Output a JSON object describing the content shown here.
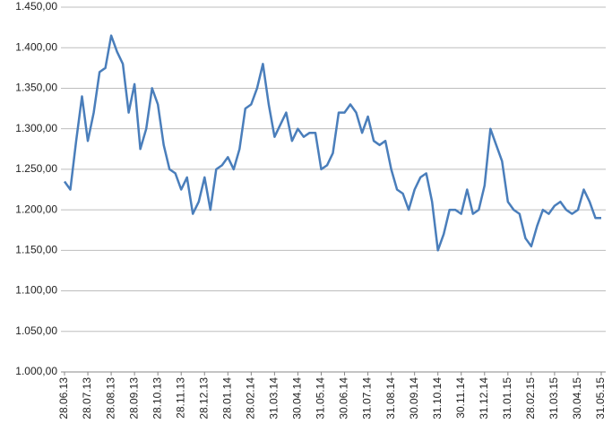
{
  "chart_data": {
    "type": "line",
    "categories": [
      "28.06.13",
      null,
      null,
      null,
      "28.07.13",
      null,
      null,
      null,
      "28.08.13",
      null,
      null,
      null,
      "28.09.13",
      null,
      null,
      null,
      "28.10.13",
      null,
      null,
      null,
      "28.11.13",
      null,
      null,
      null,
      "28.12.13",
      null,
      null,
      null,
      "28.01.14",
      null,
      null,
      null,
      "28.02.14",
      null,
      null,
      null,
      "31.03.14",
      null,
      null,
      null,
      "30.04.14",
      null,
      null,
      null,
      "31.05.14",
      null,
      null,
      null,
      "30.06.14",
      null,
      null,
      null,
      "31.07.14",
      null,
      null,
      null,
      "31.08.14",
      null,
      null,
      null,
      "30.09.14",
      null,
      null,
      null,
      "31.10.14",
      null,
      null,
      null,
      "30.11.14",
      null,
      null,
      null,
      "31.12.14",
      null,
      null,
      null,
      "31.01.15",
      null,
      null,
      null,
      "28.02.15",
      null,
      null,
      null,
      "31.03.15",
      null,
      null,
      null,
      "30.04.15",
      null,
      null,
      null,
      "31.05.15"
    ],
    "values": [
      1235,
      1225,
      1285,
      1340,
      1285,
      1320,
      1370,
      1375,
      1415,
      1395,
      1380,
      1320,
      1355,
      1275,
      1300,
      1350,
      1330,
      1280,
      1250,
      1245,
      1225,
      1240,
      1195,
      1210,
      1240,
      1200,
      1250,
      1255,
      1265,
      1250,
      1275,
      1325,
      1330,
      1350,
      1380,
      1330,
      1290,
      1305,
      1320,
      1285,
      1300,
      1290,
      1295,
      1295,
      1250,
      1255,
      1270,
      1320,
      1320,
      1330,
      1320,
      1295,
      1315,
      1285,
      1280,
      1285,
      1250,
      1225,
      1220,
      1200,
      1225,
      1240,
      1245,
      1210,
      1150,
      1170,
      1200,
      1200,
      1195,
      1225,
      1195,
      1200,
      1230,
      1300,
      1280,
      1260,
      1210,
      1200,
      1195,
      1165,
      1155,
      1180,
      1200,
      1195,
      1205,
      1210,
      1200,
      1195,
      1200,
      1225,
      1210,
      1190,
      1190
    ],
    "color": "#4a7ebb",
    "ylim": [
      1000,
      1450
    ],
    "yticks": [
      {
        "value": 1000,
        "label": "1.000,00"
      },
      {
        "value": 1050,
        "label": "1.050,00"
      },
      {
        "value": 1100,
        "label": "1.100,00"
      },
      {
        "value": 1150,
        "label": "1.150,00"
      },
      {
        "value": 1200,
        "label": "1.200,00"
      },
      {
        "value": 1250,
        "label": "1.250,00"
      },
      {
        "value": 1300,
        "label": "1.300,00"
      },
      {
        "value": 1350,
        "label": "1.350,00"
      },
      {
        "value": 1400,
        "label": "1.400,00"
      },
      {
        "value": 1450,
        "label": "1.450,00"
      }
    ],
    "grid": true
  }
}
